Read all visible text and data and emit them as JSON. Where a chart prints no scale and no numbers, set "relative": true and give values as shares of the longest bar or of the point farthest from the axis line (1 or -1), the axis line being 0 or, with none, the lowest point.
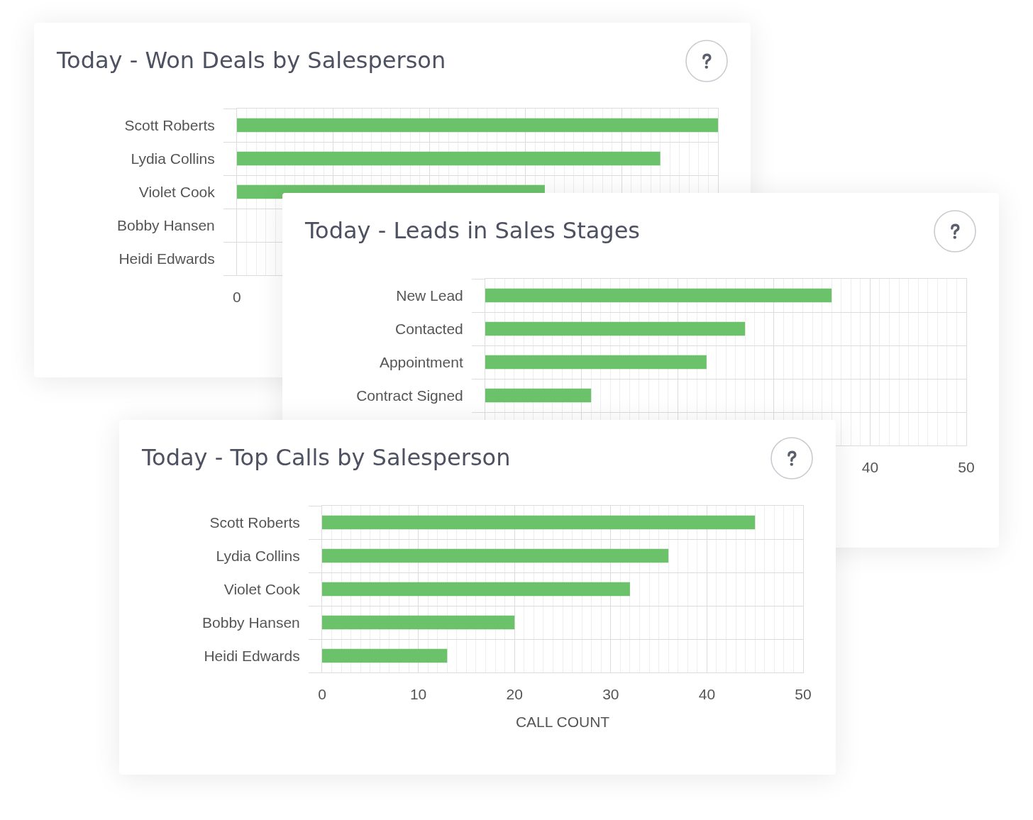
{
  "chart_data": [
    {
      "type": "bar",
      "title": "Today - Won Deals by Salesperson",
      "orientation": "horizontal",
      "relative": true,
      "categories": [
        "Scott Roberts",
        "Lydia Collins",
        "Violet Cook",
        "Bobby Hansen",
        "Heidi Edwards"
      ],
      "values": [
        1,
        0.88,
        0.64,
        null,
        null
      ],
      "color": "#6cc26b",
      "grid": true,
      "annotations": [
        "0"
      ]
    },
    {
      "type": "bar",
      "title": "Today - Leads in Sales Stages",
      "orientation": "horizontal",
      "categories": [
        "New Lead",
        "Contacted",
        "Appointment",
        "Contract Signed",
        null
      ],
      "values": [
        36,
        27,
        23,
        11,
        null
      ],
      "color": "#6cc26b",
      "xlim": [
        0,
        50
      ],
      "xticks": [
        {
          "value": 0,
          "label": null
        },
        {
          "value": 10,
          "label": null
        },
        {
          "value": 20,
          "label": null
        },
        {
          "value": 30,
          "label": null
        },
        40,
        50
      ],
      "grid": true
    },
    {
      "type": "bar",
      "title": "Today - Top Calls by Salesperson",
      "orientation": "horizontal",
      "categories": [
        "Scott Roberts",
        "Lydia Collins",
        "Violet Cook",
        "Bobby Hansen",
        "Heidi Edwards"
      ],
      "values": [
        45,
        36,
        32,
        20,
        13
      ],
      "color": "#6cc26b",
      "xlim": [
        0,
        50
      ],
      "xticks": [
        0,
        10,
        20,
        30,
        40,
        50
      ],
      "xlabel": "CALL COUNT",
      "grid": true
    }
  ]
}
